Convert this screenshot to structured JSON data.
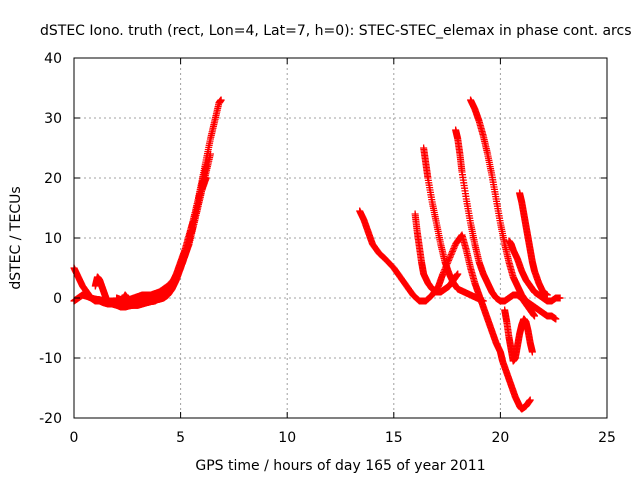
{
  "chart_data": {
    "type": "scatter",
    "title": "dSTEC Iono. truth (rect, Lon=4, Lat=7, h=0): STEC-STEC_elemax in phase cont. arcs",
    "xlabel": "GPS time / hours of day 165 of year 2011",
    "ylabel": "dSTEC  / TECUs",
    "xlim": [
      0,
      25
    ],
    "ylim": [
      -20,
      40
    ],
    "xticks": [
      0,
      5,
      10,
      15,
      20,
      25
    ],
    "yticks": [
      -20,
      -10,
      0,
      10,
      20,
      30,
      40
    ],
    "grid": true,
    "marker": "+",
    "color": "#ff0000",
    "series": [
      {
        "x": [
          0.0,
          0.2,
          0.4,
          0.6,
          0.8,
          1.0,
          1.2,
          1.4,
          1.6,
          1.8,
          2.0,
          2.2,
          2.4,
          2.6,
          2.8,
          3.0,
          3.2,
          3.4,
          3.6,
          3.8,
          4.0,
          4.2,
          4.4,
          4.6,
          4.8,
          5.0,
          5.2,
          5.4,
          5.6,
          5.8,
          6.0,
          6.2,
          6.4,
          6.6,
          6.8,
          6.9
        ],
        "y": [
          5.0,
          3.5,
          2.0,
          1.0,
          0.0,
          -0.5,
          -0.5,
          -0.8,
          -1.0,
          -1.0,
          -1.2,
          -1.5,
          -1.5,
          -1.3,
          -1.2,
          -1.2,
          -1.0,
          -0.8,
          -0.6,
          -0.5,
          0.0,
          0.5,
          1.0,
          2.0,
          3.5,
          5.5,
          7.5,
          10.0,
          13.0,
          16.0,
          19.5,
          23.0,
          26.5,
          29.5,
          32.5,
          33.0
        ]
      },
      {
        "x": [
          0.0,
          0.2,
          0.4,
          0.6,
          0.8,
          1.0,
          1.2,
          1.4,
          1.6,
          1.8,
          2.0,
          2.2,
          2.4,
          2.6,
          2.8,
          3.0,
          3.2,
          3.4,
          3.6,
          3.8,
          4.0,
          4.2,
          4.4,
          4.6,
          4.8,
          5.0,
          5.2,
          5.4,
          5.6,
          5.8,
          6.0,
          6.2,
          6.4
        ],
        "y": [
          -0.5,
          0.0,
          0.5,
          0.3,
          0.0,
          -0.2,
          -0.3,
          -0.5,
          -0.6,
          -0.5,
          -0.5,
          -0.8,
          -1.0,
          -1.0,
          -1.0,
          -0.8,
          -0.8,
          -0.6,
          -0.5,
          -0.4,
          -0.2,
          0.0,
          0.5,
          1.5,
          3.0,
          5.0,
          7.0,
          9.5,
          12.0,
          15.0,
          18.0,
          21.0,
          24.0
        ]
      },
      {
        "x": [
          1.0,
          1.1,
          1.2,
          1.3,
          1.4,
          1.5,
          1.6,
          1.8,
          2.0,
          2.2,
          2.4,
          2.6,
          2.8,
          3.0,
          3.2,
          3.4,
          3.6,
          3.8,
          4.0,
          4.2,
          4.4,
          4.6,
          4.8,
          5.0,
          5.2,
          5.4,
          5.6,
          5.8,
          6.0,
          6.2
        ],
        "y": [
          2.0,
          3.5,
          3.0,
          2.0,
          1.0,
          0.0,
          -0.5,
          -0.8,
          -1.0,
          -0.8,
          0.5,
          -0.5,
          -1.0,
          -0.5,
          -0.2,
          0.0,
          0.2,
          0.4,
          0.6,
          1.0,
          1.5,
          2.5,
          4.0,
          6.0,
          8.0,
          10.5,
          13.0,
          16.0,
          19.0,
          22.0
        ]
      },
      {
        "x": [
          2.0,
          2.4,
          2.8,
          3.2,
          3.6,
          4.0,
          4.4,
          4.8,
          5.0,
          5.2,
          5.4,
          5.6,
          5.8,
          6.0,
          6.2
        ],
        "y": [
          0.0,
          -0.5,
          0.0,
          0.5,
          0.5,
          1.0,
          2.0,
          3.5,
          5.0,
          7.0,
          9.0,
          12.0,
          15.0,
          18.0,
          20.0
        ]
      },
      {
        "x": [
          13.4,
          13.6,
          13.8,
          14.0,
          14.3,
          14.6,
          15.0,
          15.3,
          15.6,
          15.9,
          16.2,
          16.5,
          16.8,
          17.1,
          17.3,
          17.6,
          17.9,
          18.2,
          18.4,
          18.6,
          18.8,
          19.0,
          19.2,
          19.4,
          19.6,
          19.8,
          20.0,
          20.1,
          20.3,
          20.5,
          20.7,
          20.9,
          21.0,
          21.2,
          21.4
        ],
        "y": [
          14.5,
          13.0,
          11.0,
          9.0,
          7.5,
          6.5,
          5.0,
          3.5,
          2.0,
          0.5,
          -0.5,
          -0.5,
          0.5,
          2.0,
          4.0,
          6.5,
          9.0,
          10.5,
          8.0,
          5.0,
          2.5,
          0.5,
          -1.5,
          -3.5,
          -5.5,
          -7.5,
          -9.0,
          -10.5,
          -12.5,
          -14.5,
          -16.5,
          -18.0,
          -18.5,
          -18.0,
          -17.0
        ]
      },
      {
        "x": [
          16.0,
          16.1,
          16.2,
          16.3,
          16.4,
          16.6,
          16.8,
          17.0,
          17.2,
          17.4,
          17.6,
          17.8,
          18.0
        ],
        "y": [
          14.0,
          11.0,
          8.5,
          6.0,
          4.0,
          2.5,
          1.5,
          1.0,
          1.0,
          1.5,
          2.0,
          3.0,
          4.0
        ]
      },
      {
        "x": [
          16.4,
          16.5,
          16.6,
          16.8,
          17.0,
          17.2,
          17.4,
          17.6,
          17.8,
          18.0,
          18.3,
          18.6,
          18.9,
          19.2
        ],
        "y": [
          25.0,
          22.5,
          20.0,
          16.0,
          12.5,
          9.0,
          6.0,
          4.0,
          2.5,
          1.5,
          1.0,
          0.5,
          0.0,
          -0.5
        ]
      },
      {
        "x": [
          17.9,
          18.0,
          18.1,
          18.2,
          18.4,
          18.6,
          18.8,
          19.0,
          19.2,
          19.4,
          19.6,
          19.8,
          20.0,
          20.2,
          20.4,
          20.6,
          20.8,
          21.0,
          21.2,
          21.4,
          21.6
        ],
        "y": [
          28.0,
          26.5,
          24.0,
          21.0,
          16.5,
          12.5,
          9.0,
          6.0,
          4.0,
          2.5,
          1.0,
          0.0,
          -0.5,
          -0.5,
          0.0,
          0.5,
          0.5,
          0.0,
          -1.0,
          -2.0,
          -3.0
        ]
      },
      {
        "x": [
          18.6,
          18.8,
          19.0,
          19.2,
          19.4,
          19.6,
          19.8,
          20.0,
          20.2,
          20.4,
          20.6,
          20.8,
          21.0,
          21.2,
          21.4,
          21.6,
          21.8,
          22.0,
          22.2,
          22.4,
          22.6
        ],
        "y": [
          33.0,
          31.5,
          29.5,
          27.0,
          24.0,
          20.5,
          16.5,
          12.5,
          9.0,
          6.0,
          3.5,
          2.0,
          0.5,
          -0.5,
          -1.0,
          -1.5,
          -2.0,
          -2.5,
          -3.0,
          -3.0,
          -3.5
        ]
      },
      {
        "x": [
          20.2,
          20.3,
          20.4,
          20.5,
          20.6,
          20.7,
          20.8,
          20.9,
          21.0,
          21.1,
          21.2,
          21.3,
          21.4,
          21.5
        ],
        "y": [
          -2.0,
          -4.0,
          -6.5,
          -8.5,
          -10.5,
          -10.0,
          -8.0,
          -6.0,
          -4.5,
          -3.5,
          -4.0,
          -5.5,
          -7.5,
          -9.0
        ]
      },
      {
        "x": [
          20.4,
          20.5,
          20.6,
          20.8,
          21.0,
          21.2,
          21.4,
          21.6,
          21.8,
          22.0,
          22.2,
          22.4,
          22.6,
          22.8
        ],
        "y": [
          9.5,
          9.0,
          8.0,
          6.5,
          4.5,
          3.0,
          2.0,
          1.0,
          0.5,
          0.0,
          -0.5,
          -0.5,
          0.0,
          0.0
        ]
      },
      {
        "x": [
          20.9,
          21.0,
          21.1,
          21.2,
          21.3,
          21.4,
          21.5,
          21.6,
          21.8,
          22.0,
          22.2
        ],
        "y": [
          17.5,
          16.0,
          14.0,
          12.0,
          10.0,
          8.0,
          6.0,
          4.5,
          2.5,
          1.0,
          0.5
        ]
      }
    ]
  }
}
